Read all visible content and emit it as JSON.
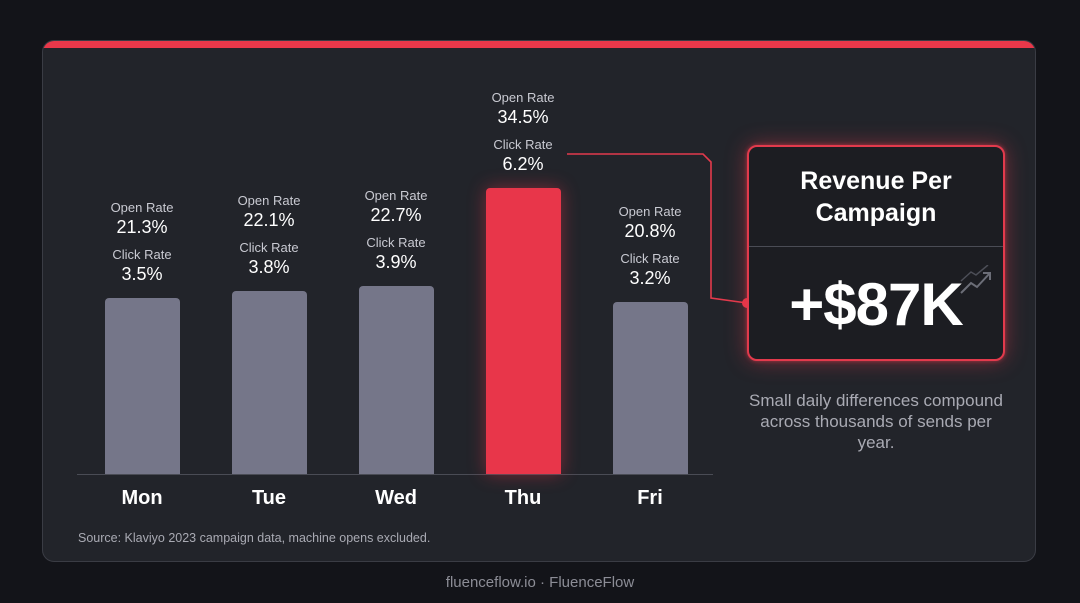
{
  "chart_data": {
    "type": "bar",
    "categories": [
      "Mon",
      "Tue",
      "Wed",
      "Thu",
      "Fri"
    ],
    "highlight": "Thu",
    "series": [
      {
        "name": "Open Rate",
        "values": [
          21.3,
          22.1,
          22.7,
          34.5,
          20.8
        ],
        "unit": "%"
      },
      {
        "name": "Click Rate",
        "values": [
          3.5,
          3.8,
          3.9,
          6.2,
          3.2
        ],
        "unit": "%"
      }
    ],
    "labels": [
      {
        "open_caption": "Open Rate",
        "open": "21.3%",
        "click_caption": "Click Rate",
        "click": "3.5%"
      },
      {
        "open_caption": "Open Rate",
        "open": "22.1%",
        "click_caption": "Click Rate",
        "click": "3.8%"
      },
      {
        "open_caption": "Open Rate",
        "open": "22.7%",
        "click_caption": "Click Rate",
        "click": "3.9%"
      },
      {
        "open_caption": "Open Rate",
        "open": "34.5%",
        "click_caption": "Click Rate",
        "click": "6.2%"
      },
      {
        "open_caption": "Open Rate",
        "open": "20.8%",
        "click_caption": "Click Rate",
        "click": "3.2%"
      }
    ],
    "title": "",
    "xlabel": "",
    "ylabel": "",
    "grid": false,
    "colors": {
      "bar": "#757689",
      "highlight": "#e8364a",
      "accent": "#e8384a"
    }
  },
  "revenue": {
    "title": "Revenue Per Campaign",
    "value": "+$87K",
    "icon": "trend-up-icon"
  },
  "note": "Small daily differences compound across thousands of sends per year.",
  "source": "Source: Klaviyo 2023 campaign data, machine opens excluded.",
  "footer": "fluenceflow.io · FluenceFlow"
}
